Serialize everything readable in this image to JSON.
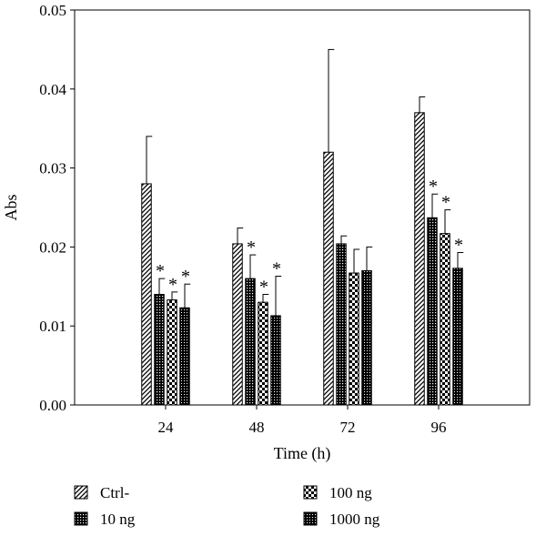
{
  "chart_data": {
    "type": "bar",
    "xlabel": "Time (h)",
    "ylabel": "Abs",
    "ylim": [
      0,
      0.05
    ],
    "yticks": [
      "0.00",
      "0.01",
      "0.02",
      "0.03",
      "0.04",
      "0.05"
    ],
    "categories": [
      "24",
      "48",
      "72",
      "96"
    ],
    "series": [
      {
        "name": "Ctrl-",
        "pattern": "diagonal-hatch",
        "values": [
          0.028,
          0.0204,
          0.032,
          0.037
        ],
        "errors": [
          0.006,
          0.002,
          0.013,
          0.002
        ],
        "significant": [
          false,
          false,
          false,
          false
        ]
      },
      {
        "name": "10 ng",
        "pattern": "fine-grid",
        "values": [
          0.014,
          0.016,
          0.0204,
          0.0237
        ],
        "errors": [
          0.002,
          0.003,
          0.001,
          0.003
        ],
        "significant": [
          true,
          true,
          false,
          true
        ]
      },
      {
        "name": "100 ng",
        "pattern": "checkerboard",
        "values": [
          0.0133,
          0.013,
          0.0167,
          0.0217
        ],
        "errors": [
          0.001,
          0.001,
          0.003,
          0.003
        ],
        "significant": [
          true,
          true,
          false,
          true
        ]
      },
      {
        "name": "1000 ng",
        "pattern": "dense-dots",
        "values": [
          0.0123,
          0.0113,
          0.017,
          0.0173
        ],
        "errors": [
          0.003,
          0.005,
          0.003,
          0.002
        ],
        "significant": [
          true,
          true,
          false,
          true
        ]
      }
    ],
    "significance_marker": "*",
    "legend_position": "bottom",
    "grid": false
  }
}
